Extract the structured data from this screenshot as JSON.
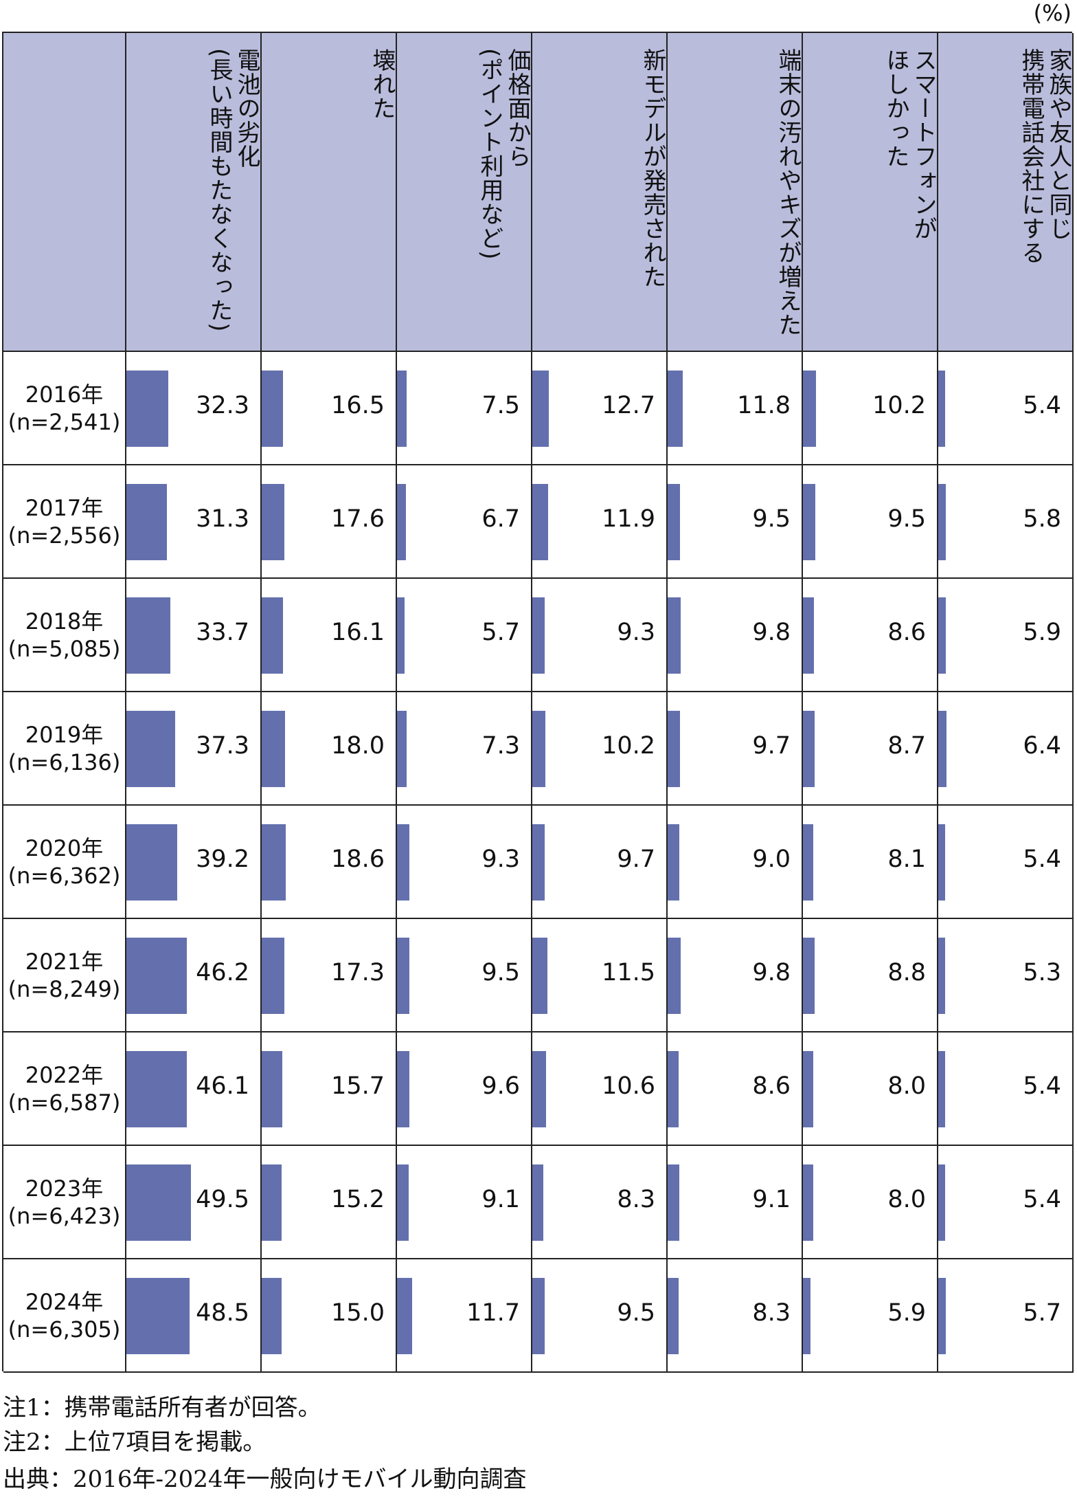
{
  "chart_data": {
    "type": "table_bar",
    "unit": "(%)",
    "categories": [
      "2016年",
      "2017年",
      "2018年",
      "2019年",
      "2020年",
      "2021年",
      "2022年",
      "2023年",
      "2024年"
    ],
    "sample_sizes": [
      "(n=2,541)",
      "(n=2,556)",
      "(n=5,085)",
      "(n=6,136)",
      "(n=6,362)",
      "(n=8,249)",
      "(n=6,587)",
      "(n=6,423)",
      "(n=6,305)"
    ],
    "xlim": [
      0,
      100
    ],
    "header_color": "#b9bcdb",
    "series": [
      {
        "name": "電池の劣化\n(長い時間もたなくなった)",
        "color": "#6470ad",
        "values": [
          32.3,
          31.3,
          33.7,
          37.3,
          39.2,
          46.2,
          46.1,
          49.5,
          48.5
        ],
        "value_labels": [
          "32.3",
          "31.3",
          "33.7",
          "37.3",
          "39.2",
          "46.2",
          "46.1",
          "49.5",
          "48.5"
        ]
      },
      {
        "name": "壊れた",
        "color": "#6470ad",
        "values": [
          16.5,
          17.6,
          16.1,
          18,
          18.6,
          17.3,
          15.7,
          15.2,
          15
        ],
        "value_labels": [
          "16.5",
          "17.6",
          "16.1",
          "18.0",
          "18.6",
          "17.3",
          "15.7",
          "15.2",
          "15.0"
        ]
      },
      {
        "name": "価格面から\n(ポイント利用など)",
        "color": "#6470ad",
        "values": [
          7.5,
          6.7,
          5.7,
          7.3,
          9.3,
          9.5,
          9.6,
          9.1,
          11.7
        ],
        "value_labels": [
          "7.5",
          "6.7",
          "5.7",
          "7.3",
          "9.3",
          "9.5",
          "9.6",
          "9.1",
          "11.7"
        ]
      },
      {
        "name": "新モデルが発売された",
        "color": "#6470ad",
        "values": [
          12.7,
          11.9,
          9.3,
          10.2,
          9.7,
          11.5,
          10.6,
          8.3,
          9.5
        ],
        "value_labels": [
          "12.7",
          "11.9",
          "9.3",
          "10.2",
          "9.7",
          "11.5",
          "10.6",
          "8.3",
          "9.5"
        ]
      },
      {
        "name": "端末の汚れやキズが増えた",
        "color": "#6470ad",
        "values": [
          11.8,
          9.5,
          9.8,
          9.7,
          9,
          9.8,
          8.6,
          9.1,
          8.3
        ],
        "value_labels": [
          "11.8",
          "9.5",
          "9.8",
          "9.7",
          "9.0",
          "9.8",
          "8.6",
          "9.1",
          "8.3"
        ]
      },
      {
        "name": "スマートフォンが\nほしかった",
        "color": "#6470ad",
        "values": [
          10.2,
          9.5,
          8.6,
          8.7,
          8.1,
          8.8,
          8,
          8,
          5.9
        ],
        "value_labels": [
          "10.2",
          "9.5",
          "8.6",
          "8.7",
          "8.1",
          "8.8",
          "8.0",
          "8.0",
          "5.9"
        ]
      },
      {
        "name": "家族や友人と同じ\n携帯電話会社にする",
        "color": "#6470ad",
        "values": [
          5.4,
          5.8,
          5.9,
          6.4,
          5.4,
          5.3,
          5.4,
          5.4,
          5.7
        ],
        "value_labels": [
          "5.4",
          "5.8",
          "5.9",
          "6.4",
          "5.4",
          "5.3",
          "5.4",
          "5.4",
          "5.7"
        ]
      }
    ],
    "notes": [
      "注1：携帯電話所有者が回答。",
      "注2：上位7項目を掲載。",
      "出典：2016年-2024年一般向けモバイル動向調査"
    ]
  }
}
